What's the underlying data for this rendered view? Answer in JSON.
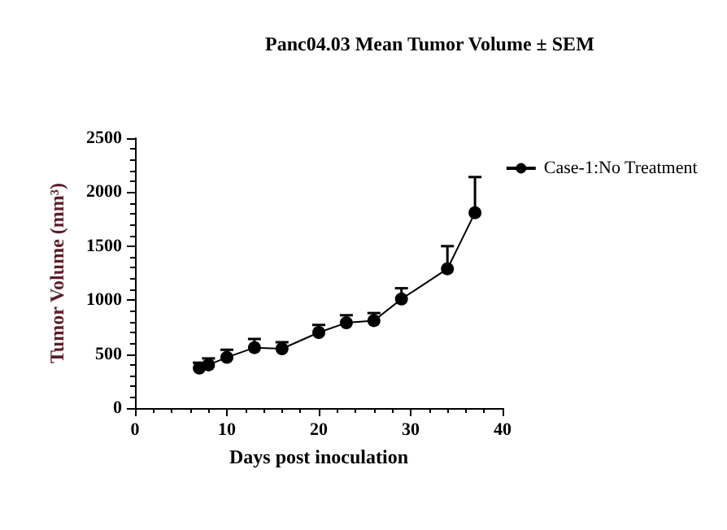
{
  "chart_data": {
    "type": "line",
    "title": "Panc04.03 Mean Tumor Volume ± SEM",
    "xlabel": "Days post inoculation",
    "ylabel": "Tumor Volume (mm³)",
    "x": [
      7,
      8,
      10,
      13,
      16,
      20,
      23,
      26,
      29,
      34,
      37
    ],
    "series": [
      {
        "name": "Case-1:No Treatment",
        "color": "#000000",
        "values": [
          370,
          400,
          470,
          560,
          550,
          700,
          790,
          810,
          1010,
          1290,
          1810
        ],
        "errors": [
          50,
          60,
          70,
          80,
          60,
          70,
          70,
          70,
          100,
          210,
          330
        ]
      }
    ],
    "xlim": [
      0,
      40
    ],
    "xticks": [
      0,
      10,
      20,
      30,
      40
    ],
    "ylim": [
      0,
      2500
    ],
    "yticks": [
      0,
      500,
      1000,
      1500,
      2000,
      2500
    ],
    "grid": false,
    "legend": "right",
    "marker": "circle",
    "line_style": "solid"
  }
}
